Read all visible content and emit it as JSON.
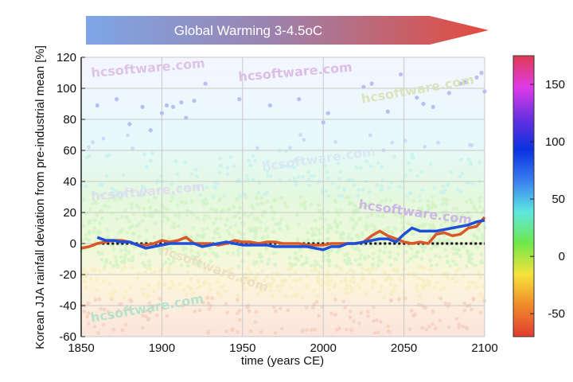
{
  "banner": {
    "text": "Global Warming 3-4.5oC",
    "color_start": "#7ea6e6",
    "color_end": "#e34a3c"
  },
  "watermarks": [
    "hcsoftware.com",
    "hcsoftware.com",
    "hcsoftware.com",
    "hcsoftware.com",
    "hcsoftware.com",
    "hcsoftware.com",
    "hcsoftware.com",
    "hcsoftware.com"
  ],
  "chart_data": {
    "type": "line",
    "title": "",
    "xlabel": "time (years CE)",
    "ylabel": "Korean JJA rainfall deviation from pre-industrial mean [%]",
    "xlim": [
      1850,
      2100
    ],
    "ylim": [
      -60,
      120
    ],
    "xticks": [
      1850,
      1900,
      1950,
      2000,
      2050,
      2100
    ],
    "yticks": [
      -60,
      -40,
      -20,
      0,
      20,
      40,
      60,
      80,
      100,
      120
    ],
    "grid": true,
    "reference_line": {
      "y": 0,
      "style": "dotted",
      "color": "#111111"
    },
    "series": [
      {
        "color": "#d9582a",
        "x": [
          1850,
          1855,
          1860,
          1865,
          1870,
          1875,
          1880,
          1885,
          1890,
          1895,
          1900,
          1905,
          1910,
          1915,
          1920,
          1925,
          1930,
          1935,
          1940,
          1945,
          1950,
          1955,
          1960,
          1965,
          1970,
          1975,
          1980,
          1985,
          1990,
          1995,
          2000,
          2005,
          2010,
          2015,
          2020,
          2025,
          2030,
          2035,
          2040,
          2045,
          2050,
          2055,
          2060,
          2065,
          2070,
          2075,
          2080,
          2085,
          2090,
          2095,
          2100
        ],
        "y": [
          -3,
          -2,
          0,
          1,
          2,
          2,
          1,
          -1,
          -1,
          0,
          2,
          1,
          2,
          4,
          0,
          0,
          0,
          -1,
          0,
          2,
          1,
          1,
          0,
          1,
          1,
          0,
          0,
          0,
          -1,
          -1,
          -1,
          0,
          0,
          0,
          0,
          1,
          5,
          8,
          5,
          3,
          1,
          0,
          1,
          0,
          6,
          7,
          5,
          6,
          10,
          11,
          17
        ]
      },
      {
        "color": "#1f4fd6",
        "x": [
          1860,
          1865,
          1870,
          1875,
          1880,
          1885,
          1890,
          1895,
          1900,
          1905,
          1910,
          1915,
          1920,
          1925,
          1930,
          1935,
          1940,
          1945,
          1950,
          1955,
          1960,
          1965,
          1970,
          1975,
          1980,
          1985,
          1990,
          1995,
          2000,
          2005,
          2010,
          2015,
          2020,
          2025,
          2030,
          2035,
          2040,
          2045,
          2050,
          2055,
          2060,
          2065,
          2070,
          2075,
          2080,
          2085,
          2090,
          2095,
          2100
        ],
        "y": [
          4,
          2,
          2,
          1,
          1,
          -1,
          -3,
          -2,
          -1,
          0,
          0,
          0,
          0,
          -2,
          -1,
          0,
          1,
          0,
          -1,
          -1,
          -1,
          -1,
          -2,
          -2,
          -2,
          -2,
          -2,
          -3,
          -4,
          -2,
          -2,
          0,
          0,
          1,
          2,
          3,
          3,
          1,
          6,
          10,
          8,
          8,
          8,
          9,
          10,
          11,
          12,
          14,
          15
        ]
      }
    ],
    "scatter_outliers": {
      "x": [
        1860,
        1872,
        1880,
        1888,
        1893,
        1900,
        1903,
        1907,
        1912,
        1915,
        1920,
        1927,
        1948,
        1967,
        1985,
        2000,
        2003,
        2025,
        2030,
        2040,
        2048,
        2058,
        2062,
        2068,
        2078,
        2085,
        2088,
        2095,
        2098,
        2100
      ],
      "y": [
        89,
        93,
        77,
        88,
        73,
        84,
        89,
        88,
        91,
        81,
        92,
        103,
        93,
        89,
        93,
        78,
        84,
        101,
        103,
        85,
        109,
        94,
        90,
        88,
        97,
        103,
        104,
        107,
        110,
        98
      ]
    },
    "colorbar": {
      "range": [
        -70,
        175
      ],
      "ticks": [
        -50,
        0,
        50,
        100,
        150
      ],
      "colors": [
        "#e33a32",
        "#f08a2a",
        "#f5e43a",
        "#6ee84a",
        "#5ee8e0",
        "#3a7ef0",
        "#0a30e0",
        "#6a30e0",
        "#e03ae8",
        "#e03a50"
      ]
    }
  }
}
